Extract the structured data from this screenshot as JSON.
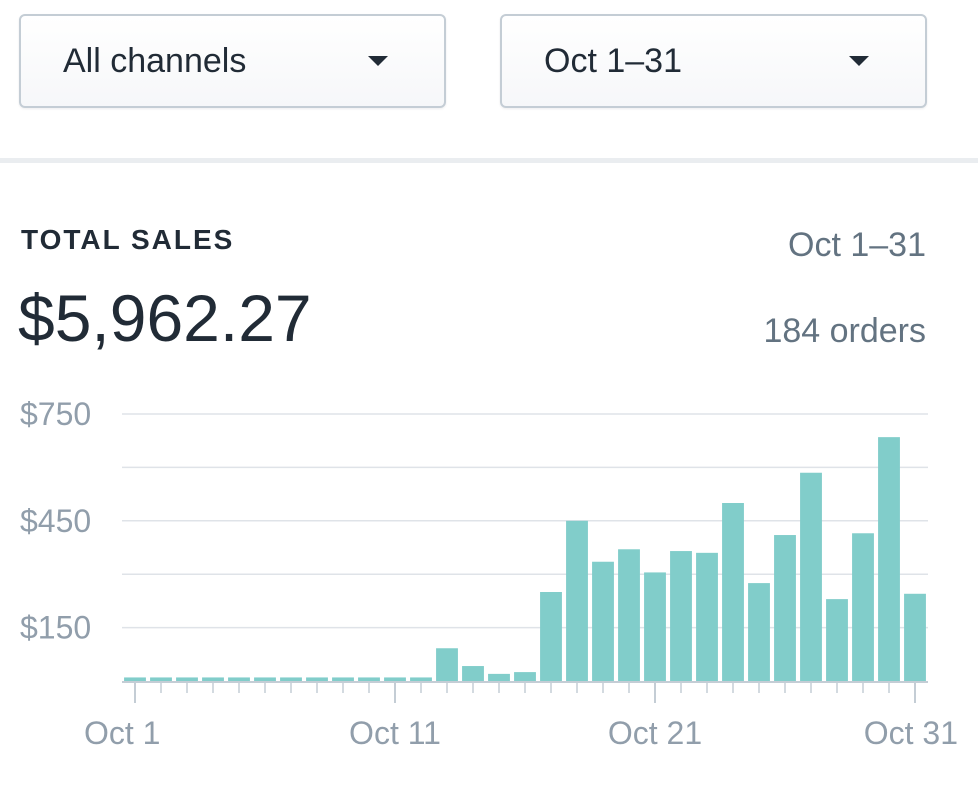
{
  "filters": {
    "channel": "All channels",
    "date": "Oct 1–31"
  },
  "summary": {
    "heading": "TOTAL SALES",
    "total": "$5,962.27",
    "date_range": "Oct 1–31",
    "orders": "184 orders"
  },
  "colors": {
    "bar": "#81cdca",
    "grid": "#dfe3e8",
    "axis": "#c4cdd5"
  },
  "chart_data": {
    "type": "bar",
    "title": "TOTAL SALES",
    "xlabel": "",
    "ylabel": "",
    "categories": [
      "Oct 1",
      "Oct 2",
      "Oct 3",
      "Oct 4",
      "Oct 5",
      "Oct 6",
      "Oct 7",
      "Oct 8",
      "Oct 9",
      "Oct 10",
      "Oct 11",
      "Oct 12",
      "Oct 13",
      "Oct 14",
      "Oct 15",
      "Oct 16",
      "Oct 17",
      "Oct 18",
      "Oct 19",
      "Oct 20",
      "Oct 21",
      "Oct 22",
      "Oct 23",
      "Oct 24",
      "Oct 25",
      "Oct 26",
      "Oct 27",
      "Oct 28",
      "Oct 29",
      "Oct 30",
      "Oct 31"
    ],
    "values": [
      10,
      10,
      10,
      10,
      10,
      10,
      10,
      10,
      10,
      10,
      10,
      10,
      92,
      42,
      20,
      25,
      250,
      450,
      335,
      370,
      305,
      365,
      360,
      500,
      275,
      410,
      585,
      230,
      415,
      685,
      245
    ],
    "ylim": [
      0,
      750
    ],
    "yticks": [
      "$750",
      "$450",
      "$150"
    ],
    "ytick_values": [
      750,
      450,
      150
    ],
    "grid_values": [
      750,
      600,
      450,
      300,
      150
    ],
    "xticks": [
      "Oct 1",
      "Oct 11",
      "Oct 21",
      "Oct 31"
    ],
    "xtick_days": [
      1,
      11,
      21,
      31
    ],
    "grid": true
  }
}
